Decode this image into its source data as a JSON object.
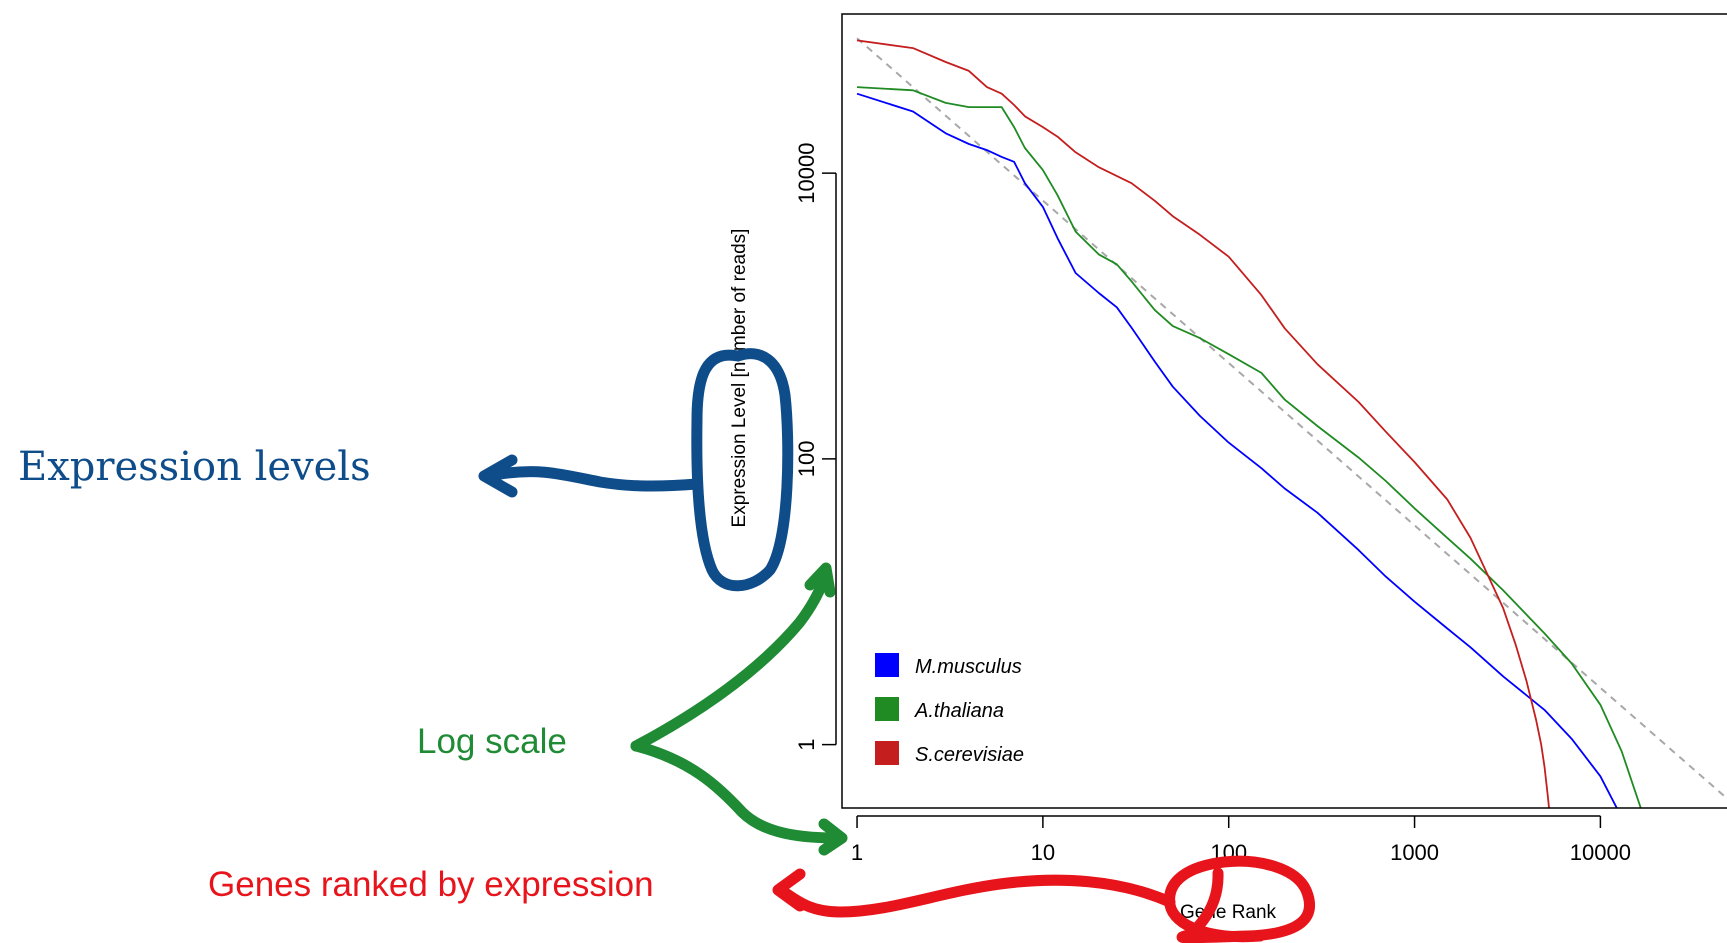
{
  "annotations": {
    "expression_levels": "Expression levels",
    "log_scale": "Log scale",
    "genes_ranked": "Genes ranked by expression"
  },
  "colors": {
    "annotation_blue": "#0f4d8a",
    "annotation_green": "#1f8b34",
    "annotation_red": "#e8141c",
    "reference_line": "#a8a8a8"
  },
  "chart_data": {
    "type": "line",
    "title": "",
    "xlabel": "Gene Rank",
    "ylabel": "Expression Level [number of reads]",
    "x_scale": "log",
    "y_scale": "log",
    "xlim": [
      0.83,
      48000
    ],
    "ylim": [
      0.36,
      130000
    ],
    "x_ticks": [
      1,
      10,
      100,
      1000,
      10000
    ],
    "x_tick_labels": [
      "1",
      "10",
      "100",
      "1000",
      "10000"
    ],
    "y_ticks": [
      1,
      100,
      10000
    ],
    "y_tick_labels": [
      "1",
      "100",
      "10000"
    ],
    "grid": false,
    "legend_position": "bottom-left",
    "reference_line": {
      "style": "dashed",
      "color": "#a8a8a8",
      "x": [
        1,
        48000
      ],
      "y": [
        88000,
        0.42
      ]
    },
    "series": [
      {
        "name": "M.musculus",
        "color": "#0000ff",
        "x": [
          1,
          2,
          3,
          4,
          5,
          6,
          7,
          8,
          10,
          12,
          15,
          20,
          25,
          30,
          40,
          50,
          70,
          100,
          150,
          200,
          300,
          500,
          700,
          1000,
          1500,
          2000,
          3000,
          5000,
          7000,
          10000,
          13000,
          15500
        ],
        "y": [
          36000,
          27000,
          19000,
          16000,
          14500,
          13000,
          12000,
          8500,
          5800,
          3500,
          2000,
          1450,
          1150,
          830,
          480,
          320,
          200,
          130,
          86,
          62,
          42,
          23,
          15,
          10,
          6.5,
          4.8,
          3.0,
          1.75,
          1.1,
          0.6,
          0.31,
          0.2
        ]
      },
      {
        "name": "A.thaliana",
        "color": "#1f8b22",
        "x": [
          1,
          2,
          3,
          4,
          5,
          6,
          7,
          8,
          10,
          12,
          15,
          20,
          25,
          30,
          40,
          50,
          70,
          100,
          150,
          200,
          300,
          500,
          700,
          1000,
          1500,
          2000,
          3000,
          5000,
          7000,
          10000,
          13000,
          17000,
          21000
        ],
        "y": [
          40000,
          38000,
          31000,
          29000,
          29000,
          29000,
          21000,
          15000,
          10500,
          7000,
          3900,
          2700,
          2300,
          1750,
          1100,
          850,
          700,
          540,
          400,
          260,
          170,
          102,
          70,
          45,
          28,
          20,
          12,
          6.0,
          3.7,
          1.9,
          0.9,
          0.32,
          0.2
        ]
      },
      {
        "name": "S.cerevisiae",
        "color": "#c41e1e",
        "x": [
          1,
          2,
          3,
          4,
          5,
          6,
          7,
          8,
          10,
          12,
          15,
          20,
          30,
          40,
          50,
          70,
          100,
          150,
          200,
          300,
          500,
          700,
          1000,
          1500,
          2000,
          2500,
          3000,
          3500,
          4000,
          4500,
          4800,
          5000,
          5200,
          5300
        ],
        "y": [
          85000,
          75000,
          60000,
          52000,
          40000,
          36000,
          30000,
          25000,
          21000,
          18000,
          14000,
          11000,
          8500,
          6400,
          5000,
          3700,
          2600,
          1400,
          820,
          460,
          250,
          155,
          95,
          52,
          28,
          15,
          9,
          5,
          2.8,
          1.5,
          1.0,
          0.7,
          0.45,
          0.35
        ]
      }
    ]
  }
}
